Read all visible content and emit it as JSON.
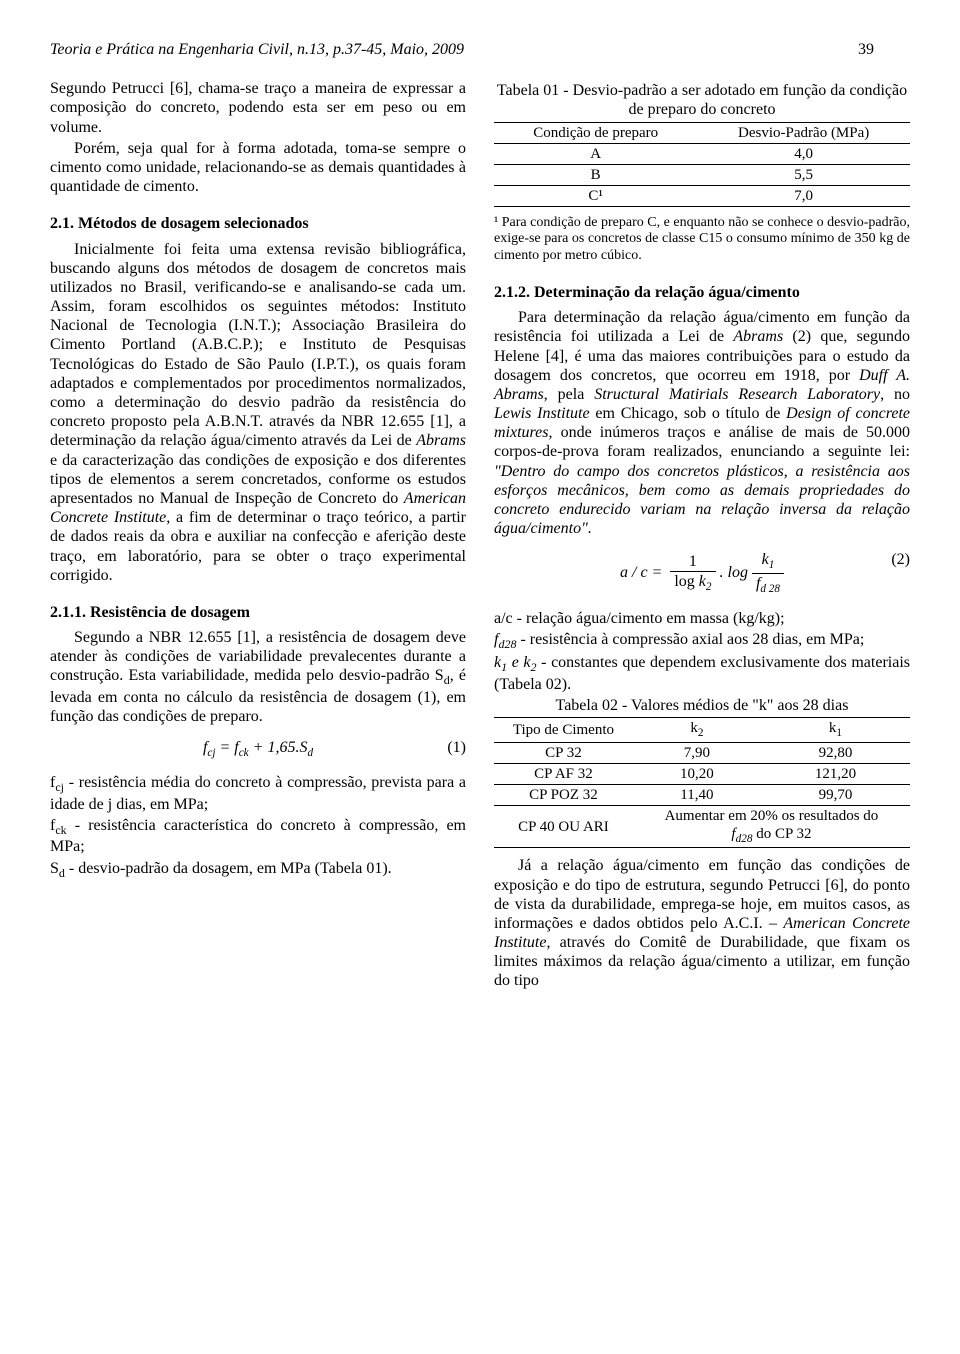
{
  "header": {
    "title": "Teoria e Prática na Engenharia Civil, n.13, p.37-45, Maio, 2009",
    "page_number": "39"
  },
  "left": {
    "p1": "Segundo Petrucci [6], chama-se traço a maneira de expressar a composição do concreto, podendo esta ser em peso ou em volume.",
    "p2": "Porém, seja qual for à forma adotada, toma-se sempre o cimento como unidade, relacionando-se as demais quantidades à quantidade de cimento.",
    "h21": "2.1. Métodos de dosagem selecionados",
    "p3_a": "Inicialmente foi feita uma extensa revisão bibliográfica, buscando alguns dos métodos de dosagem de concretos mais utilizados no Brasil, verificando-se e analisando-se cada um. Assim, foram escolhidos os seguintes métodos: Instituto Nacional de Tecnologia (I.N.T.); Associação Brasileira do Cimento Portland (A.B.C.P.); e Instituto de Pesquisas Tecnológicas do Estado de São Paulo (I.P.T.), os quais foram adaptados e complementados por procedimentos normalizados, como a determinação do desvio padrão da resistência do concreto proposto pela A.B.N.T. através da NBR 12.655 [1], a determinação da relação água/cimento através da Lei de ",
    "p3_b": " e da caracterização das condições de exposição e dos diferentes tipos de elementos a serem concretados, conforme os estudos apresentados no Manual de Inspeção de Concreto do ",
    "p3_c": " a fim de determinar o traço teórico, a partir de dados reais da obra e auxiliar na confecção e aferição deste traço, em laboratório, para se obter o traço experimental corrigido.",
    "abrams": "Abrams",
    "aci_inst": "American Concrete Institute,",
    "h211": "2.1.1. Resistência de dosagem",
    "p4": "Segundo a NBR 12.655 [1], a resistência de dosagem deve atender às condições de variabilidade prevalecentes durante a construção. Esta variabilidade, medida pelo desvio-padrão S",
    "p4b": ", é levada em conta no cálculo da resistência de dosagem (1), em função das condições de preparo.",
    "eq1_num": "(1)",
    "defs": {
      "l1a": "f",
      "l1b": " - resistência média do concreto à compressão, prevista para a idade de j dias, em MPa;",
      "l2a": "f",
      "l2b": " - resistência característica do concreto à compressão, em MPa;",
      "l3a": "S",
      "l3b": " - desvio-padrão da dosagem, em MPa (Tabela 01)."
    }
  },
  "right": {
    "t1": {
      "caption": "Tabela 01 - Desvio-padrão a ser adotado em função da condição de preparo do concreto",
      "h1": "Condição de preparo",
      "h2": "Desvio-Padrão (MPa)",
      "r1c1": "A",
      "r1c2": "4,0",
      "r2c1": "B",
      "r2c2": "5,5",
      "r3c1": "C¹",
      "r3c2": "7,0",
      "foot": "¹ Para condição de preparo C, e enquanto não se conhece o desvio-padrão, exige-se para os concretos de classe C15 o consumo mínimo de 350 kg de cimento por metro cúbico."
    },
    "h212": "2.1.2. Determinação da relação água/cimento",
    "p1a": "Para determinação da relação água/cimento em função da resistência foi utilizada a Lei de ",
    "p1b": " (2) que, segundo Helene [4], é uma das maiores contribuições para o estudo da dosagem dos concretos, que ocorreu em 1918, por ",
    "duff": "Duff A. Abrams",
    "p1c": ", pela ",
    "lab": "Structural Matirials Research Laboratory",
    "p1d": ", no ",
    "lewis": "Lewis Institute",
    "p1e": " em Chicago, sob o título de ",
    "design": "Design of concrete mixtures",
    "p1f": ", onde inúmeros traços e análise de mais de 50.000 corpos-de-prova foram realizados, enunciando a seguinte lei: ",
    "quote": "\"Dentro do campo dos concretos plásticos, a resistência aos esforços mecânicos, bem como as demais propriedades do concreto endurecido variam na relação inversa da relação água/cimento\".",
    "abrams": "Abrams",
    "eq2_num": "(2)",
    "defs": {
      "l1": "a/c - relação água/cimento em massa (kg/kg);",
      "l2a": "f",
      "l2b": " - resistência à compressão axial aos 28 dias, em MPa;",
      "l3a": "k",
      "l3b": " e k",
      "l3c": " - constantes que dependem exclusivamente dos materiais (Tabela 02)."
    },
    "t2": {
      "caption": "Tabela 02 - Valores médios de \"k\" aos 28 dias",
      "h1": "Tipo de Cimento",
      "h2": "k",
      "h3": "k",
      "r1c1": "CP 32",
      "r1c2": "7,90",
      "r1c3": "92,80",
      "r2c1": "CP AF 32",
      "r2c2": "10,20",
      "r2c3": "121,20",
      "r3c1": "CP POZ 32",
      "r3c2": "11,40",
      "r3c3": "99,70",
      "r4c1": "CP 40 OU ARI",
      "r4c2a": "Aumentar em 20% os resultados do ",
      "r4c2b": " do CP 32",
      "r4f": "f"
    },
    "p2a": "Já a relação água/cimento em função das condições de exposição e do tipo de estrutura, segundo Petrucci [6], do ponto de vista da durabilidade, emprega-se hoje, em muitos casos, as informações e dados obtidos pelo A.C.I. – ",
    "aci": "American Concrete Institute",
    "p2b": ", através do Comitê de Durabilidade, que fixam os limites máximos da relação água/cimento a utilizar, em função do tipo"
  }
}
